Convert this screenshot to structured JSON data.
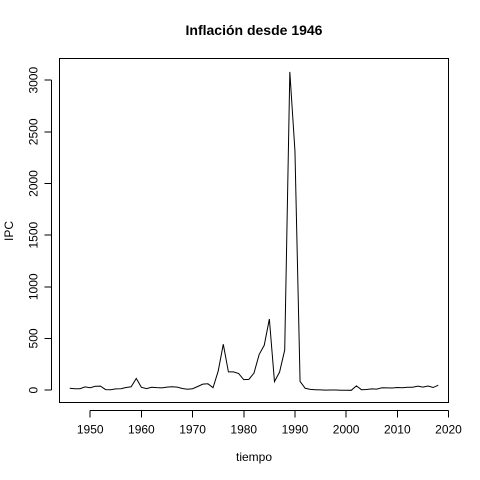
{
  "chart_data": {
    "type": "line",
    "title": "Inflación desde 1946",
    "xlabel": "tiempo",
    "ylabel": "IPC",
    "xlim": [
      1944,
      2020
    ],
    "ylim": [
      -120,
      3210
    ],
    "x_ticks": [
      1950,
      1960,
      1970,
      1980,
      1990,
      2000,
      2010,
      2020
    ],
    "y_ticks": [
      0,
      500,
      1000,
      1500,
      2000,
      2500,
      3000
    ],
    "grid": false,
    "legend": "none",
    "series": [
      {
        "x": [
          1946,
          1947,
          1948,
          1949,
          1950,
          1951,
          1952,
          1953,
          1954,
          1955,
          1956,
          1957,
          1958,
          1959,
          1960,
          1961,
          1962,
          1963,
          1964,
          1965,
          1966,
          1967,
          1968,
          1969,
          1970,
          1971,
          1972,
          1973,
          1974,
          1975,
          1976,
          1977,
          1978,
          1979,
          1980,
          1981,
          1982,
          1983,
          1984,
          1985,
          1986,
          1987,
          1988,
          1989,
          1990,
          1991,
          1992,
          1993,
          1994,
          1995,
          1996,
          1997,
          1998,
          1999,
          2000,
          2001,
          2002,
          2003,
          2004,
          2005,
          2006,
          2007,
          2008,
          2009,
          2010,
          2011,
          2012,
          2013,
          2014,
          2015,
          2016,
          2017,
          2018
        ],
        "values": [
          18,
          13,
          13,
          31,
          23,
          37,
          39,
          5,
          3,
          12,
          13,
          25,
          32,
          113,
          27,
          14,
          28,
          24,
          22,
          29,
          32,
          29,
          16,
          8,
          13,
          35,
          58,
          61,
          24,
          183,
          444,
          176,
          176,
          160,
          101,
          104,
          165,
          344,
          434,
          688,
          82,
          175,
          388,
          3080,
          2314,
          84,
          18,
          7,
          4,
          2,
          0,
          1,
          1,
          -1,
          -1,
          -2,
          41,
          4,
          6,
          12,
          10,
          23,
          22,
          20,
          25,
          23,
          27,
          28,
          38,
          29,
          40,
          25,
          48
        ]
      }
    ]
  }
}
